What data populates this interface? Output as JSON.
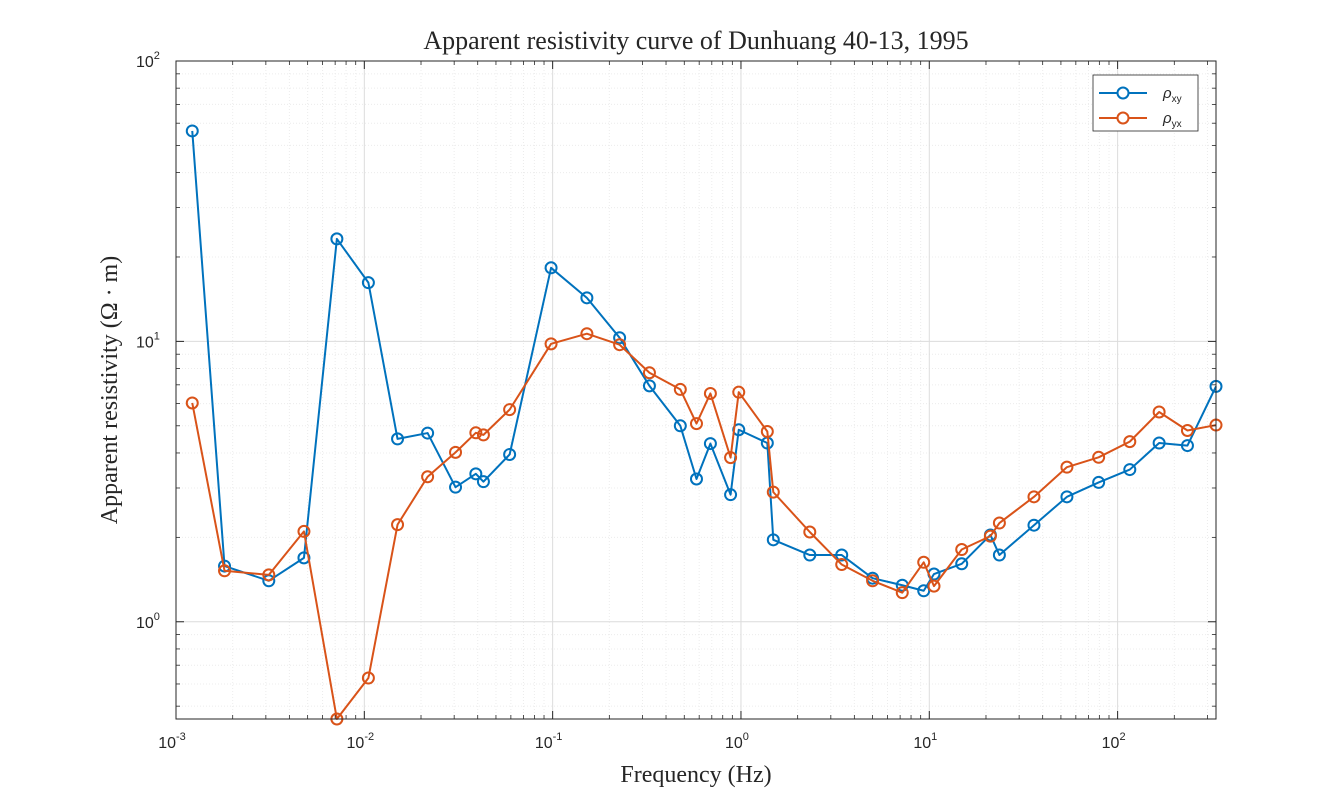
{
  "chart_data": {
    "type": "line",
    "title": "Apparent resistivity curve of Dunhuang 40-13, 1995",
    "xlabel": "Frequency (Hz)",
    "ylabel": "Apparent  resistivity  (Ω · m)",
    "xscale": "log",
    "yscale": "log",
    "xlim": [
      0.001,
      333
    ],
    "ylim": [
      0.45,
      100
    ],
    "grid": true,
    "minor_grid": true,
    "legend_position": "top-right",
    "x_ticks": [
      {
        "base": "10",
        "exp": "-3",
        "value": 0.001
      },
      {
        "base": "10",
        "exp": "-2",
        "value": 0.01
      },
      {
        "base": "10",
        "exp": "-1",
        "value": 0.1
      },
      {
        "base": "10",
        "exp": "0",
        "value": 1
      },
      {
        "base": "10",
        "exp": "1",
        "value": 10
      },
      {
        "base": "10",
        "exp": "2",
        "value": 100
      }
    ],
    "y_ticks": [
      {
        "base": "10",
        "exp": "0",
        "value": 1
      },
      {
        "base": "10",
        "exp": "1",
        "value": 10
      },
      {
        "base": "10",
        "exp": "2",
        "value": 100
      }
    ],
    "series": [
      {
        "name": "ρ",
        "name_sub": "xy",
        "color": "#0072BD",
        "x": [
          0.00122,
          0.00181,
          0.00311,
          0.00478,
          0.00715,
          0.01051,
          0.01501,
          0.02168,
          0.0305,
          0.0391,
          0.0429,
          0.0591,
          0.0981,
          0.152,
          0.2268,
          0.3266,
          0.4764,
          0.5805,
          0.6882,
          0.8807,
          0.9733,
          1.3802,
          1.4848,
          2.3199,
          3.4278,
          4.9985,
          7.1862,
          9.3405,
          10.592,
          14.867,
          21.113,
          23.563,
          35.969,
          53.808,
          79.303,
          116.07,
          166.14,
          234.87,
          333.0
        ],
        "y": [
          56.3,
          1.58,
          1.4,
          1.69,
          23.2,
          16.2,
          4.49,
          4.71,
          3.02,
          3.37,
          3.16,
          3.95,
          18.3,
          14.3,
          10.3,
          6.94,
          5.0,
          3.23,
          4.32,
          2.84,
          4.84,
          4.34,
          1.96,
          1.73,
          1.73,
          1.43,
          1.35,
          1.29,
          1.48,
          1.61,
          2.04,
          1.73,
          2.21,
          2.79,
          3.14,
          3.49,
          4.34,
          4.25,
          6.91
        ]
      },
      {
        "name": "ρ",
        "name_sub": "yx",
        "color": "#D95319",
        "x": [
          0.00122,
          0.00181,
          0.00311,
          0.00478,
          0.00715,
          0.01051,
          0.01501,
          0.02168,
          0.0305,
          0.0391,
          0.0429,
          0.0591,
          0.0981,
          0.152,
          0.2268,
          0.3266,
          0.4764,
          0.5805,
          0.6882,
          0.8807,
          0.9733,
          1.3802,
          1.4848,
          2.3199,
          3.4278,
          4.9985,
          7.1862,
          9.3405,
          10.592,
          14.867,
          21.113,
          23.563,
          35.969,
          53.808,
          79.303,
          116.07,
          166.14,
          234.87,
          333.0
        ],
        "y": [
          6.03,
          1.52,
          1.47,
          2.1,
          0.45,
          0.63,
          2.22,
          3.29,
          4.02,
          4.72,
          4.64,
          5.71,
          9.8,
          10.65,
          9.73,
          7.73,
          6.74,
          5.09,
          6.52,
          3.85,
          6.59,
          4.77,
          2.9,
          2.09,
          1.6,
          1.4,
          1.27,
          1.63,
          1.34,
          1.81,
          2.02,
          2.25,
          2.79,
          3.56,
          3.86,
          4.39,
          5.6,
          4.81,
          5.03
        ]
      }
    ]
  }
}
